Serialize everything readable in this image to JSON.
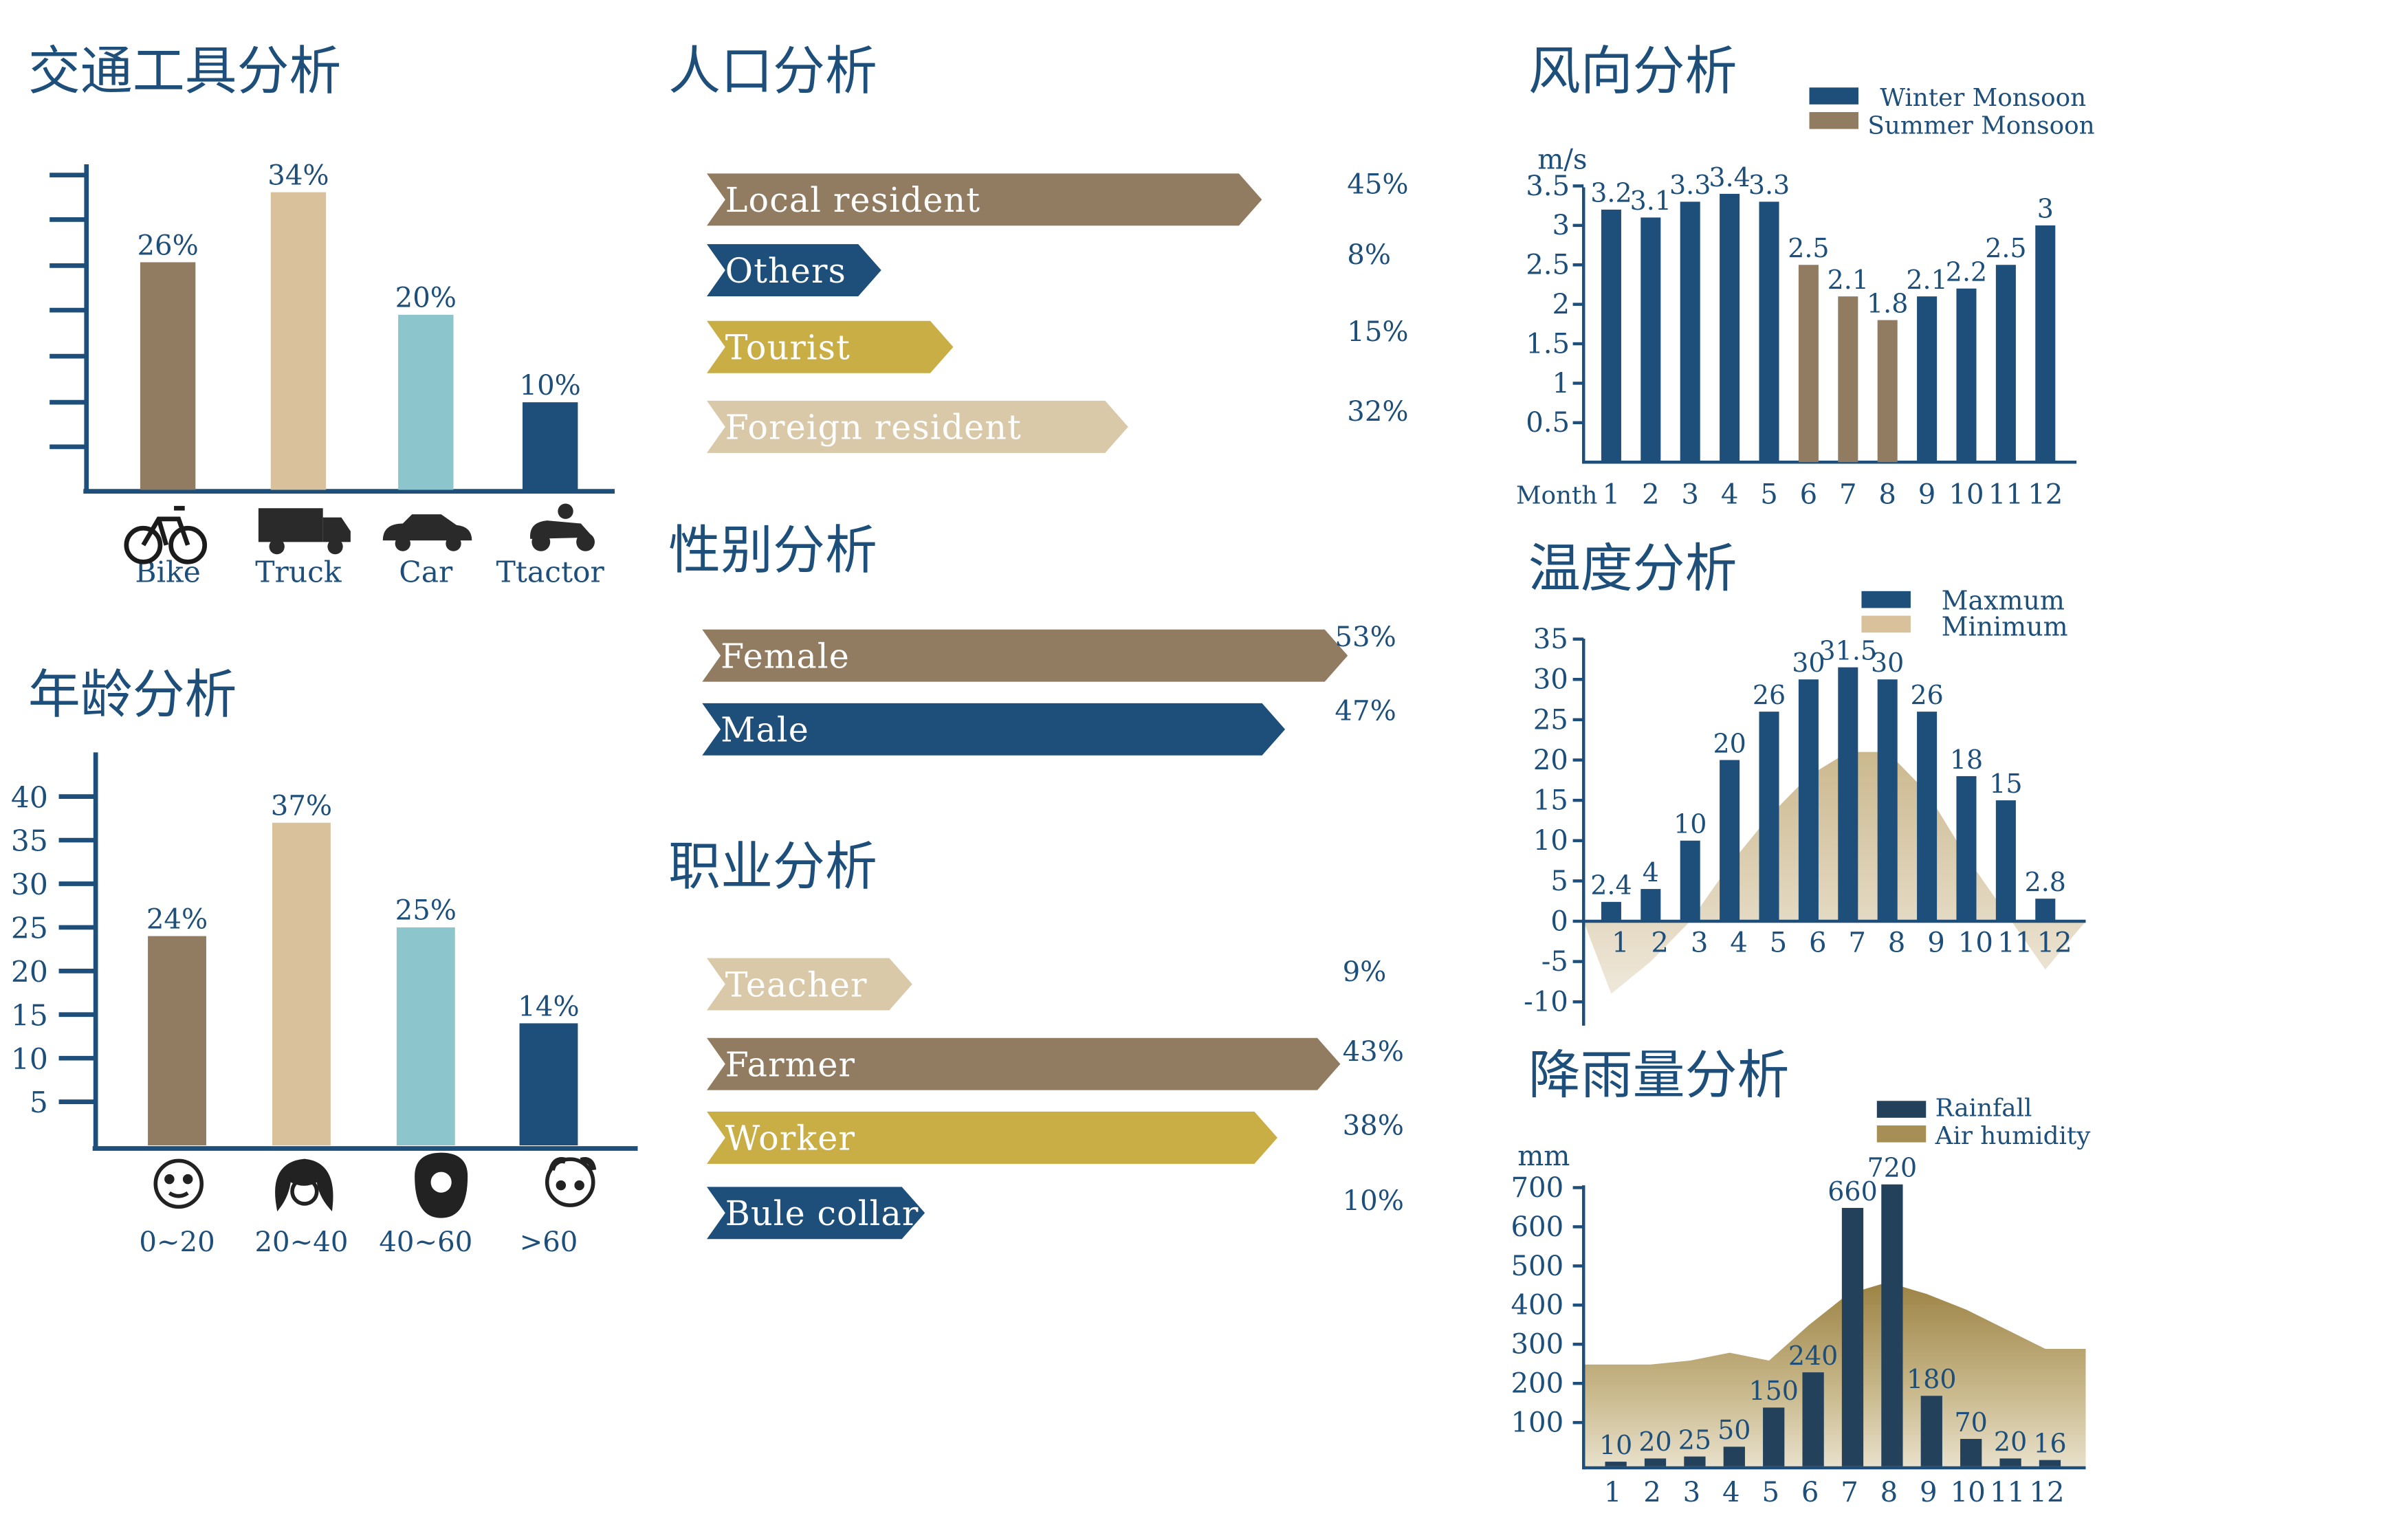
{
  "colors": {
    "navy": "#1d4f7a",
    "brown": "#927c61",
    "sand": "#d8c19b",
    "cyan": "#8cc6cc",
    "gold": "#c9ad45",
    "beige": "#d9c9a9",
    "dark_navy": "#24415c",
    "olive": "#a58f55"
  },
  "chart_data": [
    {
      "id": "transport",
      "type": "bar",
      "title": "交通工具分析",
      "categories": [
        "Bike",
        "Truck",
        "Car",
        "Ttactor"
      ],
      "values": [
        26,
        34,
        20,
        10
      ],
      "value_labels": [
        "26%",
        "34%",
        "20%",
        "10%"
      ],
      "bar_colors": [
        "#927c61",
        "#d8c19b",
        "#8cc6cc",
        "#1d4f7a"
      ],
      "icons": [
        "bicycle-icon",
        "truck-icon",
        "car-icon",
        "tractor-icon"
      ],
      "ylim": [
        0,
        36
      ],
      "grid": false
    },
    {
      "id": "age",
      "type": "bar",
      "title": "年龄分析",
      "categories": [
        "0~20",
        "20~40",
        "40~60",
        ">60"
      ],
      "values": [
        24,
        37,
        25,
        14
      ],
      "value_labels": [
        "24%",
        "37%",
        "25%",
        "14%"
      ],
      "bar_colors": [
        "#927c61",
        "#d8c19b",
        "#8cc6cc",
        "#1d4f7a"
      ],
      "icons": [
        "baby-face-icon",
        "young-face-icon",
        "bearded-face-icon",
        "old-face-icon"
      ],
      "yticks": [
        5,
        10,
        15,
        20,
        25,
        30,
        35,
        40
      ],
      "ylim": [
        0,
        45
      ],
      "grid": false
    },
    {
      "id": "population",
      "type": "bar",
      "orientation": "horizontal",
      "title": "人口分析",
      "categories": [
        "Local resident",
        "Others",
        "Tourist",
        "Foreign resident"
      ],
      "values": [
        45,
        8,
        15,
        32
      ],
      "value_labels": [
        "45%",
        "8%",
        "15%",
        "32%"
      ],
      "bar_colors": [
        "#927c61",
        "#1d4f7a",
        "#c9ad45",
        "#d9c9a9"
      ]
    },
    {
      "id": "gender",
      "type": "bar",
      "orientation": "horizontal",
      "title": "性别分析",
      "categories": [
        "Female",
        "Male"
      ],
      "values": [
        53,
        47
      ],
      "value_labels": [
        "53%",
        "47%"
      ],
      "bar_colors": [
        "#927c61",
        "#1d4f7a"
      ]
    },
    {
      "id": "occupation",
      "type": "bar",
      "orientation": "horizontal",
      "title": "职业分析",
      "categories": [
        "Teacher",
        "Farmer",
        "Worker",
        "Bule collar"
      ],
      "values": [
        9,
        43,
        38,
        10
      ],
      "value_labels": [
        "9%",
        "43%",
        "38%",
        "10%"
      ],
      "bar_colors": [
        "#d9c9a9",
        "#927c61",
        "#c9ad45",
        "#1d4f7a"
      ]
    },
    {
      "id": "wind",
      "type": "bar",
      "title": "风向分析",
      "unit": "m/s",
      "xlabel": "Month",
      "categories": [
        "1",
        "2",
        "3",
        "4",
        "5",
        "6",
        "7",
        "8",
        "9",
        "10",
        "11",
        "12"
      ],
      "values": [
        3.2,
        3.1,
        3.3,
        3.4,
        3.3,
        2.5,
        2.1,
        1.8,
        2.1,
        2.2,
        2.5,
        3
      ],
      "value_labels": [
        "3.2",
        "3.1",
        "3.3",
        "3.4",
        "3.3",
        "2.5",
        "2.1",
        "1.8",
        "2.1",
        "2.2",
        "2.5",
        "3"
      ],
      "season": [
        "winter",
        "winter",
        "winter",
        "winter",
        "winter",
        "summer",
        "summer",
        "summer",
        "winter",
        "winter",
        "winter",
        "winter"
      ],
      "yticks": [
        "0.5",
        "1",
        "1.5",
        "2",
        "2.5",
        "3",
        "3.5"
      ],
      "ylim": [
        0,
        3.5
      ],
      "legend": [
        "Winter Monsoon",
        "Summer Monsoon"
      ],
      "legend_colors": [
        "#1d4f7a",
        "#927c61"
      ],
      "legend_position": "top-right"
    },
    {
      "id": "temperature",
      "type": "bar",
      "title": "温度分析",
      "categories": [
        "1",
        "2",
        "3",
        "4",
        "5",
        "6",
        "7",
        "8",
        "9",
        "10",
        "11",
        "12"
      ],
      "values": [
        2.4,
        4,
        10,
        20,
        26,
        30,
        31.5,
        30,
        26,
        18,
        15,
        2.8
      ],
      "value_labels": [
        "2.4",
        "4",
        "10",
        "20",
        "26",
        "30",
        "31.5",
        "30",
        "26",
        "18",
        "15",
        "2.8"
      ],
      "min_area_values": [
        -9,
        -5,
        0,
        7,
        13,
        18,
        21,
        21,
        16,
        8,
        1,
        -6
      ],
      "yticks": [
        "-10",
        "-5",
        "0",
        "5",
        "10",
        "15",
        "20",
        "25",
        "30",
        "35"
      ],
      "ylim": [
        -10,
        35
      ],
      "legend": [
        "Maxmum",
        "Minimum"
      ],
      "legend_colors": [
        "#1d4f7a",
        "#d8c19b"
      ],
      "legend_position": "top-right"
    },
    {
      "id": "rainfall",
      "type": "bar",
      "title": "降雨量分析",
      "unit": "mm",
      "categories": [
        "1",
        "2",
        "3",
        "4",
        "5",
        "6",
        "7",
        "8",
        "9",
        "10",
        "11",
        "12"
      ],
      "values": [
        10,
        20,
        25,
        50,
        150,
        240,
        660,
        720,
        180,
        70,
        20,
        16
      ],
      "value_labels": [
        "10",
        "20",
        "25",
        "50",
        "150",
        "240",
        "660",
        "720",
        "180",
        "70",
        "20",
        "16"
      ],
      "humidity_area_values": [
        260,
        260,
        270,
        290,
        270,
        360,
        440,
        470,
        440,
        400,
        350,
        300
      ],
      "yticks": [
        "100",
        "200",
        "300",
        "400",
        "500",
        "600",
        "700"
      ],
      "ylim": [
        0,
        700
      ],
      "legend": [
        "Rainfall",
        "Air humidity"
      ],
      "legend_colors": [
        "#24415c",
        "#a58f55"
      ],
      "legend_position": "top-right"
    }
  ]
}
